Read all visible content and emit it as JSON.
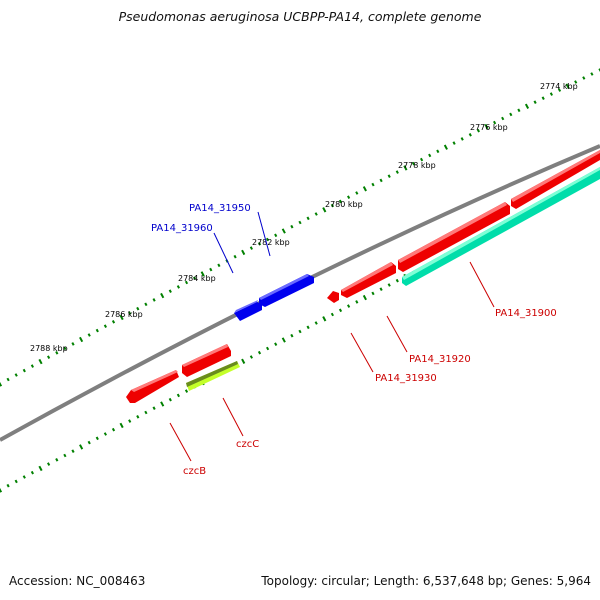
{
  "title": "Pseudomonas aeruginosa UCBPP-PA14, complete genome",
  "footer": {
    "accession": "Accession: NC_008463",
    "summary": "Topology: circular; Length: 6,537,648 bp; Genes: 5,964"
  },
  "colors": {
    "backbone": "#808080",
    "ticks": "#008000",
    "forward_label": "#0000cc",
    "reverse_label": "#cc0000",
    "forward_gene": "#0000ff",
    "reverse_gene": "#ff0000",
    "rna_gene": "#00e6a0",
    "czcC_top": "#6e8a1e",
    "czcC_bottom": "#c8ff2a"
  },
  "kbp_labels": [
    "2774 kbp",
    "2776 kbp",
    "2778 kbp",
    "2780 kbp",
    "2782 kbp",
    "2784 kbp",
    "2786 kbp",
    "2788 kbp"
  ],
  "gene_labels": {
    "forward": [
      "PA14_31950",
      "PA14_31960"
    ],
    "reverse": [
      "PA14_31900",
      "PA14_31920",
      "PA14_31930",
      "czcC",
      "czcB"
    ]
  }
}
